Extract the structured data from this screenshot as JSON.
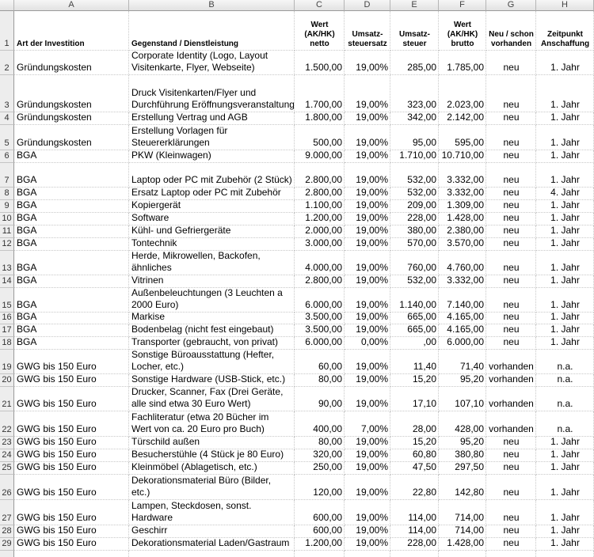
{
  "sheet": {
    "columns": [
      "A",
      "B",
      "C",
      "D",
      "E",
      "F",
      "G",
      "H"
    ],
    "rows": [
      {
        "number": "1",
        "cells": [
          "Art der Investition",
          "Gegenstand / Dienstleistung",
          "Wert\n(AK/HK)\nnetto",
          "Umsatz-\nsteuersatz",
          "Umsatz-\nsteuer",
          "Wert\n(AK/HK)\nbrutto",
          "Neu / schon\nvorhanden",
          "Zeitpunkt\nAnschaffung"
        ]
      },
      {
        "number": "2",
        "cells": [
          "Gründungskosten",
          "Corporate Identity (Logo, Layout\nVisitenkarte, Flyer, Webseite)",
          "1.500,00",
          "19,00%",
          "285,00",
          "1.785,00",
          "neu",
          "1. Jahr"
        ]
      },
      {
        "number": "3",
        "cells": [
          "Gründungskosten",
          "Druck Visitenkarten/Flyer und\nDurchführung Eröffnungsveranstaltung",
          "1.700,00",
          "19,00%",
          "323,00",
          "2.023,00",
          "neu",
          "1. Jahr"
        ]
      },
      {
        "number": "4",
        "cells": [
          "Gründungskosten",
          "Erstellung Vertrag und AGB",
          "1.800,00",
          "19,00%",
          "342,00",
          "2.142,00",
          "neu",
          "1. Jahr"
        ]
      },
      {
        "number": "5",
        "cells": [
          "Gründungskosten",
          "Erstellung Vorlagen für\nSteuererklärungen",
          "500,00",
          "19,00%",
          "95,00",
          "595,00",
          "neu",
          "1. Jahr"
        ]
      },
      {
        "number": "6",
        "cells": [
          "BGA",
          "PKW (Kleinwagen)",
          "9.000,00",
          "19,00%",
          "1.710,00",
          "10.710,00",
          "neu",
          "1. Jahr"
        ]
      },
      {
        "number": "7",
        "cells": [
          "BGA",
          "Laptop oder PC mit Zubehör (2 Stück)",
          "2.800,00",
          "19,00%",
          "532,00",
          "3.332,00",
          "neu",
          "1. Jahr"
        ]
      },
      {
        "number": "8",
        "cells": [
          "BGA",
          "Ersatz Laptop oder PC mit Zubehör",
          "2.800,00",
          "19,00%",
          "532,00",
          "3.332,00",
          "neu",
          "4. Jahr"
        ]
      },
      {
        "number": "9",
        "cells": [
          "BGA",
          "Kopiergerät",
          "1.100,00",
          "19,00%",
          "209,00",
          "1.309,00",
          "neu",
          "1. Jahr"
        ]
      },
      {
        "number": "10",
        "cells": [
          "BGA",
          "Software",
          "1.200,00",
          "19,00%",
          "228,00",
          "1.428,00",
          "neu",
          "1. Jahr"
        ]
      },
      {
        "number": "11",
        "cells": [
          "BGA",
          "Kühl- und Gefriergeräte",
          "2.000,00",
          "19,00%",
          "380,00",
          "2.380,00",
          "neu",
          "1. Jahr"
        ]
      },
      {
        "number": "12",
        "cells": [
          "BGA",
          "Tontechnik",
          "3.000,00",
          "19,00%",
          "570,00",
          "3.570,00",
          "neu",
          "1. Jahr"
        ]
      },
      {
        "number": "13",
        "cells": [
          "BGA",
          "Herde, Mikrowellen, Backofen,\nähnliches",
          "4.000,00",
          "19,00%",
          "760,00",
          "4.760,00",
          "neu",
          "1. Jahr"
        ]
      },
      {
        "number": "14",
        "cells": [
          "BGA",
          "Vitrinen",
          "2.800,00",
          "19,00%",
          "532,00",
          "3.332,00",
          "neu",
          "1. Jahr"
        ]
      },
      {
        "number": "15",
        "cells": [
          "BGA",
          "Außenbeleuchtungen (3 Leuchten a\n2000 Euro)",
          "6.000,00",
          "19,00%",
          "1.140,00",
          "7.140,00",
          "neu",
          "1. Jahr"
        ]
      },
      {
        "number": "16",
        "cells": [
          "BGA",
          "Markise",
          "3.500,00",
          "19,00%",
          "665,00",
          "4.165,00",
          "neu",
          "1. Jahr"
        ]
      },
      {
        "number": "17",
        "cells": [
          "BGA",
          "Bodenbelag (nicht fest eingebaut)",
          "3.500,00",
          "19,00%",
          "665,00",
          "4.165,00",
          "neu",
          "1. Jahr"
        ]
      },
      {
        "number": "18",
        "cells": [
          "BGA",
          "Transporter (gebraucht, von privat)",
          "6.000,00",
          "0,00%",
          ",00",
          "6.000,00",
          "neu",
          "1. Jahr"
        ]
      },
      {
        "number": "19",
        "cells": [
          "GWG bis 150 Euro",
          "Sonstige Büroausstattung (Hefter,\nLocher, etc.)",
          "60,00",
          "19,00%",
          "11,40",
          "71,40",
          "vorhanden",
          "n.a."
        ]
      },
      {
        "number": "20",
        "cells": [
          "GWG bis 150 Euro",
          "Sonstige Hardware (USB-Stick, etc.)",
          "80,00",
          "19,00%",
          "15,20",
          "95,20",
          "vorhanden",
          "n.a."
        ]
      },
      {
        "number": "21",
        "cells": [
          "GWG bis 150 Euro",
          "Drucker, Scanner, Fax (Drei Geräte,\nalle sind etwa 30 Euro Wert)",
          "90,00",
          "19,00%",
          "17,10",
          "107,10",
          "vorhanden",
          "n.a."
        ]
      },
      {
        "number": "22",
        "cells": [
          "GWG bis 150 Euro",
          "Fachliteratur (etwa 20 Bücher im\nWert von ca. 20 Euro pro Buch)",
          "400,00",
          "7,00%",
          "28,00",
          "428,00",
          "vorhanden",
          "n.a."
        ]
      },
      {
        "number": "23",
        "cells": [
          "GWG bis 150 Euro",
          "Türschild außen",
          "80,00",
          "19,00%",
          "15,20",
          "95,20",
          "neu",
          "1. Jahr"
        ]
      },
      {
        "number": "24",
        "cells": [
          "GWG bis 150 Euro",
          "Besucherstühle (4 Stück je 80 Euro)",
          "320,00",
          "19,00%",
          "60,80",
          "380,80",
          "neu",
          "1. Jahr"
        ]
      },
      {
        "number": "25",
        "cells": [
          "GWG bis 150 Euro",
          "Kleinmöbel (Ablagetisch, etc.)",
          "250,00",
          "19,00%",
          "47,50",
          "297,50",
          "neu",
          "1. Jahr"
        ]
      },
      {
        "number": "26",
        "cells": [
          "GWG bis 150 Euro",
          "Dekorationsmaterial Büro (Bilder,\netc.)",
          "120,00",
          "19,00%",
          "22,80",
          "142,80",
          "neu",
          "1. Jahr"
        ]
      },
      {
        "number": "27",
        "cells": [
          "GWG bis 150 Euro",
          "Lampen, Steckdosen, sonst.\nHardware",
          "600,00",
          "19,00%",
          "114,00",
          "714,00",
          "neu",
          "1. Jahr"
        ]
      },
      {
        "number": "28",
        "cells": [
          "GWG bis 150 Euro",
          "Geschirr",
          "600,00",
          "19,00%",
          "114,00",
          "714,00",
          "neu",
          "1. Jahr"
        ]
      },
      {
        "number": "29",
        "cells": [
          "GWG bis 150 Euro",
          "Dekorationsmaterial Laden/Gastraum",
          "1.200,00",
          "19,00%",
          "228,00",
          "1.428,00",
          "neu",
          "1. Jahr"
        ]
      }
    ]
  }
}
